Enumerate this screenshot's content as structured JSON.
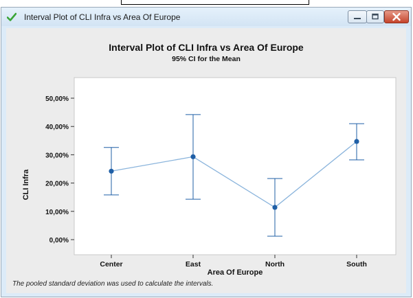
{
  "window": {
    "title": "Interval Plot of CLI Infra vs Area Of Europe",
    "icon": "green-checkmark-icon",
    "controls": [
      "minimize-icon",
      "maximize-icon",
      "close-icon"
    ]
  },
  "colors": {
    "series": "#1f5fa6",
    "line": "#8ab4dc",
    "plot_bg": "#ffffff",
    "graph_bg": "#ececec",
    "close_button": "#c5442c"
  },
  "chart_data": {
    "type": "interval",
    "title": "Interval Plot of CLI Infra vs Area Of Europe",
    "subtitle": "95% CI for the Mean",
    "xlabel": "Area Of Europe",
    "ylabel": "CLI Infra",
    "categories": [
      "Center",
      "East",
      "North",
      "South"
    ],
    "means": [
      24.2,
      29.3,
      11.4,
      34.7
    ],
    "lower": [
      15.8,
      14.3,
      1.2,
      28.2
    ],
    "upper": [
      32.6,
      44.2,
      21.6,
      41.0
    ],
    "ylim": [
      0,
      50
    ],
    "yticks": [
      0,
      10,
      20,
      30,
      40,
      50
    ],
    "ytick_labels": [
      "0,00%",
      "10,00%",
      "20,00%",
      "30,00%",
      "40,00%",
      "50,00%"
    ],
    "grid": false,
    "legend": false
  },
  "footnote": "The pooled standard deviation was used to calculate the intervals."
}
